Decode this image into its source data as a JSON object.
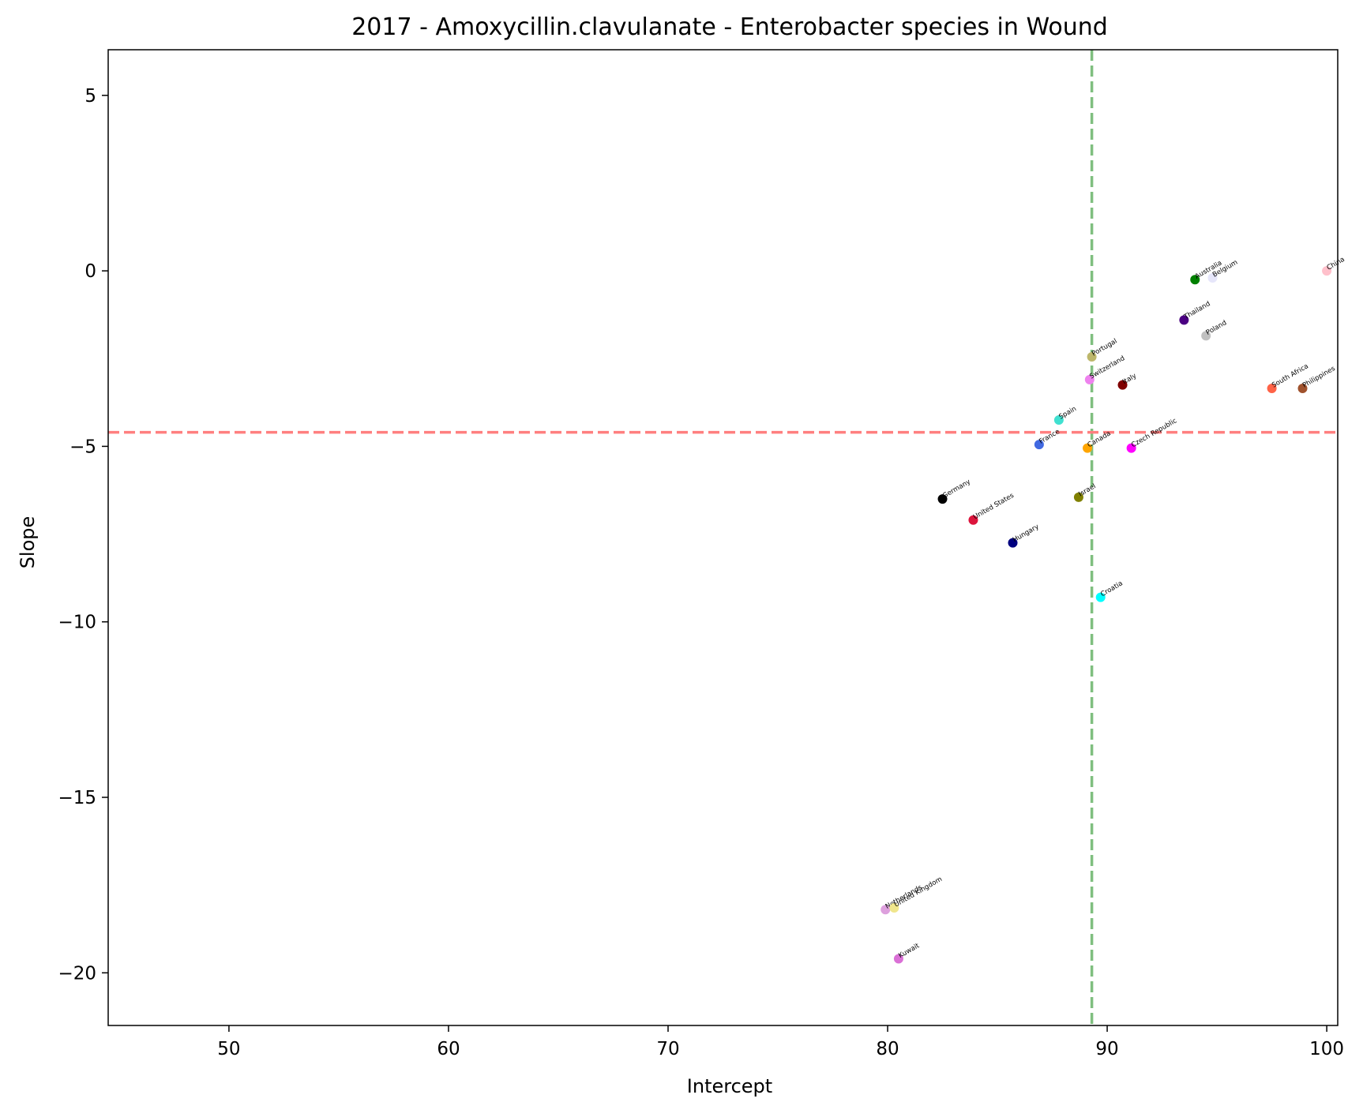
{
  "chart_data": {
    "type": "scatter",
    "title": "2017 - Amoxycillin.clavulanate - Enterobacter species in Wound",
    "xlabel": "Intercept",
    "ylabel": "Slope",
    "xlim": [
      44.5,
      100.5
    ],
    "ylim": [
      -21.5,
      6.3
    ],
    "xticks": [
      50,
      60,
      70,
      80,
      90,
      100
    ],
    "yticks": [
      5,
      0,
      -5,
      -10,
      -15,
      -20
    ],
    "xtick_labels": [
      "50",
      "60",
      "70",
      "80",
      "90",
      "100"
    ],
    "ytick_labels": [
      "5",
      "0",
      "−10",
      "−15",
      "−20"
    ],
    "ytick_labels_all": [
      "5",
      "0",
      "−5",
      "−10",
      "−15",
      "−20"
    ],
    "reference_lines": {
      "vertical_x": 89.3,
      "horizontal_y": -4.6,
      "vertical_color": "#7fbf7f",
      "horizontal_color": "#ff7f7f"
    },
    "grid": false,
    "points": [
      {
        "label": "China",
        "x": 100.0,
        "y": 0.0,
        "color": "#ffc0cb"
      },
      {
        "label": "Australia",
        "x": 94.0,
        "y": -0.25,
        "color": "#008000"
      },
      {
        "label": "Belgium",
        "x": 94.8,
        "y": -0.2,
        "color": "#e6e6fa"
      },
      {
        "label": "Thailand",
        "x": 93.5,
        "y": -1.4,
        "color": "#4b0082"
      },
      {
        "label": "Poland",
        "x": 94.5,
        "y": -1.85,
        "color": "#c0c0c0"
      },
      {
        "label": "Portugal",
        "x": 89.3,
        "y": -2.45,
        "color": "#bdb76b"
      },
      {
        "label": "Switzerland",
        "x": 89.2,
        "y": -3.1,
        "color": "#ee82ee"
      },
      {
        "label": "Italy",
        "x": 90.7,
        "y": -3.25,
        "color": "#800000"
      },
      {
        "label": "South Africa",
        "x": 97.5,
        "y": -3.35,
        "color": "#ff6347"
      },
      {
        "label": "Philippines",
        "x": 98.9,
        "y": -3.35,
        "color": "#a0522d"
      },
      {
        "label": "Spain",
        "x": 87.8,
        "y": -4.25,
        "color": "#40e0d0"
      },
      {
        "label": "France",
        "x": 86.9,
        "y": -4.95,
        "color": "#4169e1"
      },
      {
        "label": "Canada",
        "x": 89.1,
        "y": -5.05,
        "color": "#ffa500"
      },
      {
        "label": "Czech Republic",
        "x": 91.1,
        "y": -5.05,
        "color": "#ff00ff"
      },
      {
        "label": "Israel",
        "x": 88.7,
        "y": -6.45,
        "color": "#808000"
      },
      {
        "label": "Germany",
        "x": 82.5,
        "y": -6.5,
        "color": "#000000"
      },
      {
        "label": "United States",
        "x": 83.9,
        "y": -7.1,
        "color": "#dc143c"
      },
      {
        "label": "Hungary",
        "x": 85.7,
        "y": -7.75,
        "color": "#000080"
      },
      {
        "label": "Croatia",
        "x": 89.7,
        "y": -9.3,
        "color": "#00ffff"
      },
      {
        "label": "Netherlands",
        "x": 79.9,
        "y": -18.2,
        "color": "#dda0dd"
      },
      {
        "label": "United Kingdom",
        "x": 80.3,
        "y": -18.15,
        "color": "#f0e68c"
      },
      {
        "label": "Kuwait",
        "x": 80.5,
        "y": -19.6,
        "color": "#da70d6"
      }
    ]
  }
}
